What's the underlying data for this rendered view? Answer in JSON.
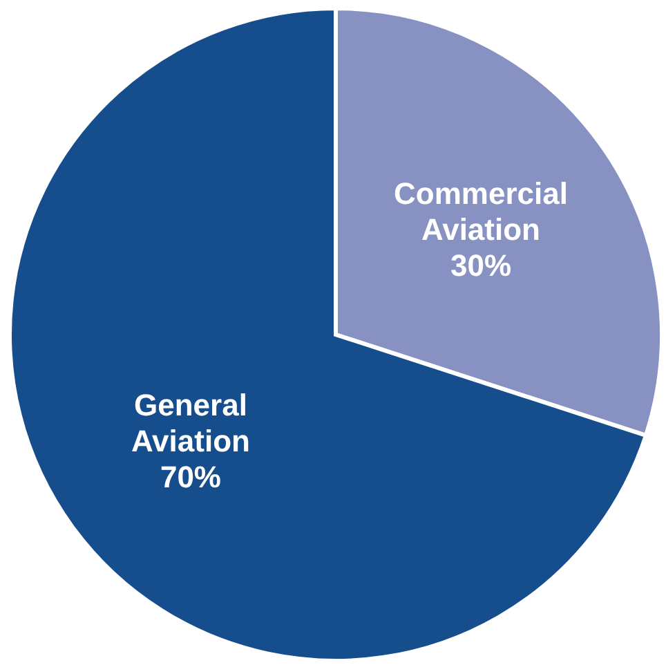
{
  "chart_data": {
    "type": "pie",
    "categories": [
      "Commercial Aviation",
      "General Aviation"
    ],
    "values": [
      30,
      70
    ],
    "value_labels": [
      "30%",
      "70%"
    ],
    "colors": [
      "#8792c2",
      "#154d8d"
    ],
    "legend": false
  }
}
